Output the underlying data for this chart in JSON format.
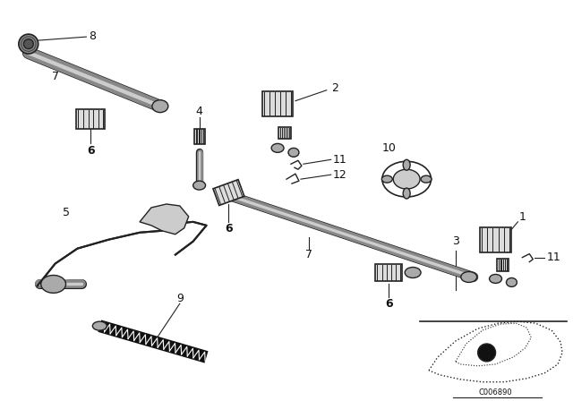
{
  "background_color": "#ffffff",
  "fig_width": 6.4,
  "fig_height": 4.48,
  "dpi": 100,
  "line_color": "#222222",
  "text_color": "#111111",
  "code_text": "C006890"
}
